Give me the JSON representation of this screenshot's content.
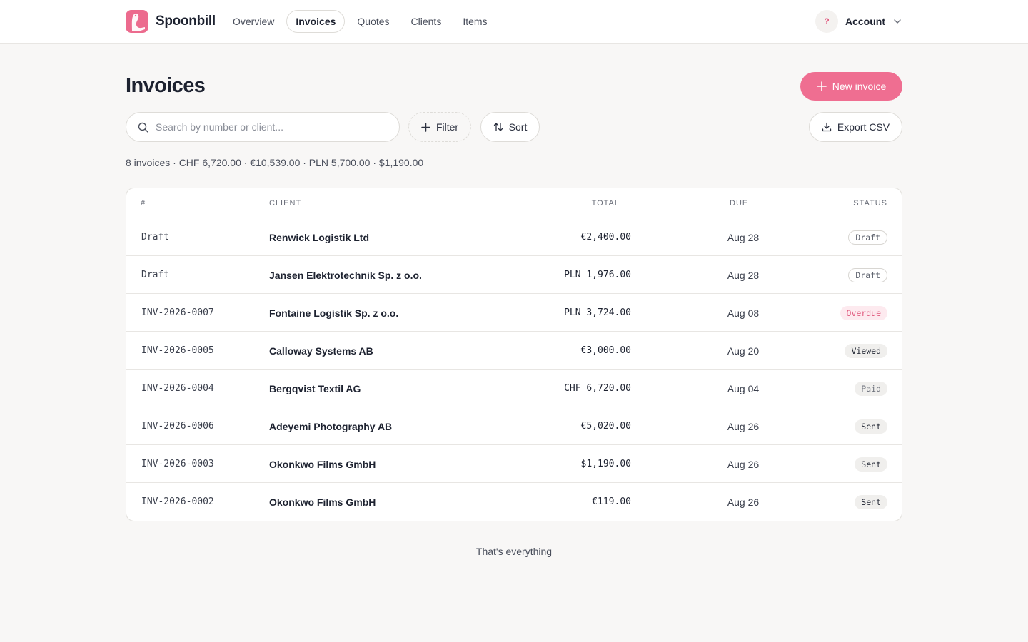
{
  "app": {
    "name": "Spoonbill"
  },
  "nav": {
    "items": [
      {
        "label": "Overview",
        "active": false
      },
      {
        "label": "Invoices",
        "active": true
      },
      {
        "label": "Quotes",
        "active": false
      },
      {
        "label": "Clients",
        "active": false
      },
      {
        "label": "Items",
        "active": false
      }
    ]
  },
  "account": {
    "avatar_text": "?",
    "label": "Account"
  },
  "page": {
    "title": "Invoices",
    "new_button": "New invoice"
  },
  "toolbar": {
    "search_placeholder": "Search by number or client...",
    "search_value": "",
    "filter_label": "Filter",
    "sort_label": "Sort",
    "export_label": "Export CSV"
  },
  "summary": "8 invoices · CHF 6,720.00 · €10,539.00 · PLN 5,700.00 · $1,190.00",
  "table": {
    "headers": {
      "number": "#",
      "client": "CLIENT",
      "total": "TOTAL",
      "due": "DUE",
      "status": "STATUS"
    },
    "rows": [
      {
        "number": "Draft",
        "client": "Renwick Logistik Ltd",
        "total": "€2,400.00",
        "due": "Aug 28",
        "status": "Draft",
        "status_kind": "draft"
      },
      {
        "number": "Draft",
        "client": "Jansen Elektrotechnik Sp. z o.o.",
        "total": "PLN 1,976.00",
        "due": "Aug 28",
        "status": "Draft",
        "status_kind": "draft"
      },
      {
        "number": "INV-2026-0007",
        "client": "Fontaine Logistik Sp. z o.o.",
        "total": "PLN 3,724.00",
        "due": "Aug 08",
        "status": "Overdue",
        "status_kind": "overdue"
      },
      {
        "number": "INV-2026-0005",
        "client": "Calloway Systems AB",
        "total": "€3,000.00",
        "due": "Aug 20",
        "status": "Viewed",
        "status_kind": "viewed"
      },
      {
        "number": "INV-2026-0004",
        "client": "Bergqvist Textil AG",
        "total": "CHF 6,720.00",
        "due": "Aug 04",
        "status": "Paid",
        "status_kind": "paid"
      },
      {
        "number": "INV-2026-0006",
        "client": "Adeyemi Photography AB",
        "total": "€5,020.00",
        "due": "Aug 26",
        "status": "Sent",
        "status_kind": "sent"
      },
      {
        "number": "INV-2026-0003",
        "client": "Okonkwo Films GmbH",
        "total": "$1,190.00",
        "due": "Aug 26",
        "status": "Sent",
        "status_kind": "sent"
      },
      {
        "number": "INV-2026-0002",
        "client": "Okonkwo Films GmbH",
        "total": "€119.00",
        "due": "Aug 26",
        "status": "Sent",
        "status_kind": "sent"
      }
    ]
  },
  "footer": {
    "end_text": "That's everything"
  },
  "colors": {
    "accent": "#ef6e91",
    "overdue": "#e0557b",
    "background": "#f8f7f6"
  }
}
